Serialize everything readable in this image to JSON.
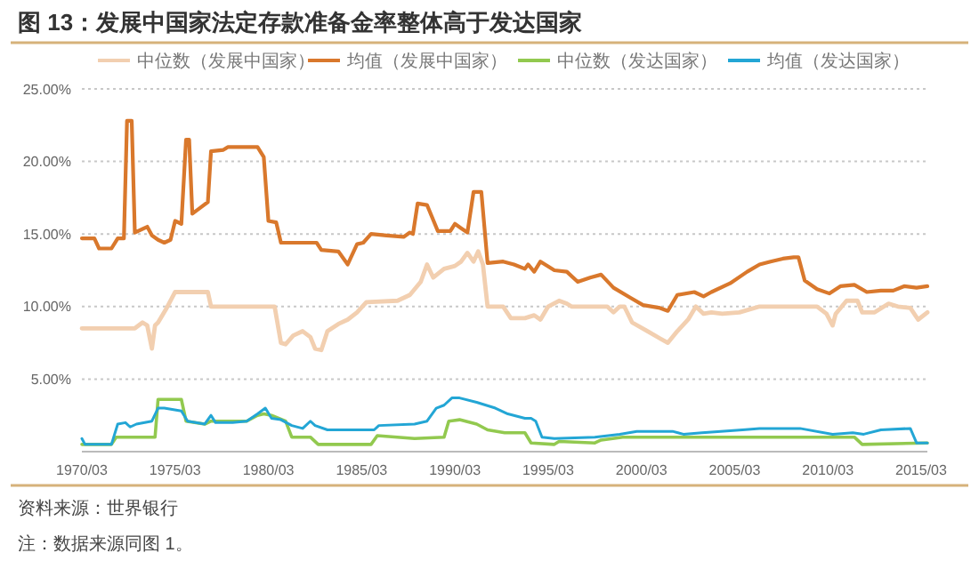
{
  "chart_data": {
    "type": "line",
    "title": "图 13：发展中国家法定存款准备金率整体高于发达国家",
    "annotations": [
      "资料来源：世界银行",
      "注：数据来源同图 1。"
    ],
    "xlim": [
      "1970-03",
      "2015-07"
    ],
    "xticks": [
      {
        "value": "1970-03",
        "label": "1970/03"
      },
      {
        "value": "1975-03",
        "label": "1975/03"
      },
      {
        "value": "1980-03",
        "label": "1980/03"
      },
      {
        "value": "1985-03",
        "label": "1985/03"
      },
      {
        "value": "1990-03",
        "label": "1990/03"
      },
      {
        "value": "1995-03",
        "label": "1995/03"
      },
      {
        "value": "2000-03",
        "label": "2000/03"
      },
      {
        "value": "2005-03",
        "label": "2005/03"
      },
      {
        "value": "2010-03",
        "label": "2010/03"
      },
      {
        "value": "2015-03",
        "label": "2015/03"
      }
    ],
    "ylim": [
      0,
      25
    ],
    "yticks": [
      {
        "value": 0,
        "label": null
      },
      {
        "value": 5,
        "label": "5.00%"
      },
      {
        "value": 10,
        "label": "10.00%"
      },
      {
        "value": 15,
        "label": "15.00%"
      },
      {
        "value": 20,
        "label": "20.00%"
      },
      {
        "value": 25,
        "label": "25.00%"
      }
    ],
    "grid": "y",
    "legend": "top",
    "series": [
      {
        "name": "中位数（发展中国家）",
        "color": "#f2cfb0",
        "x": [
          "1970-03",
          "1973-01",
          "1973-06",
          "1973-09",
          "1973-12",
          "1974-02",
          "1974-04",
          "1974-09",
          "1975-03",
          "1976-12",
          "1977-02",
          "1980-07",
          "1980-11",
          "1981-02",
          "1981-07",
          "1982-01",
          "1982-06",
          "1982-09",
          "1983-01",
          "1983-05",
          "1983-12",
          "1984-06",
          "1984-12",
          "1985-06",
          "1987-02",
          "1987-10",
          "1988-05",
          "1988-09",
          "1989-01",
          "1989-08",
          "1990-03",
          "1990-07",
          "1990-11",
          "1991-03",
          "1991-06",
          "1991-09",
          "1991-12",
          "1992-10",
          "1993-03",
          "1993-12",
          "1994-06",
          "1994-10",
          "1995-03",
          "1995-10",
          "1996-03",
          "1996-06",
          "1998-05",
          "1998-09",
          "1999-01",
          "1999-04",
          "1999-09",
          "2000-07",
          "2001-03",
          "2001-08",
          "2002-02",
          "2002-09",
          "2003-02",
          "2003-07",
          "2003-12",
          "2004-07",
          "2005-06",
          "2006-07",
          "2009-08",
          "2010-02",
          "2010-06",
          "2010-08",
          "2011-03",
          "2011-10",
          "2012-01",
          "2012-09",
          "2013-06",
          "2013-12",
          "2014-08",
          "2015-01",
          "2015-07"
        ],
        "values": [
          8.5,
          8.5,
          8.9,
          8.7,
          7.1,
          8.7,
          8.9,
          9.8,
          11.0,
          11.0,
          10.0,
          10.0,
          7.5,
          7.4,
          8.0,
          8.3,
          7.9,
          7.1,
          7.0,
          8.3,
          8.8,
          9.1,
          9.6,
          10.3,
          10.4,
          10.8,
          11.7,
          12.9,
          12.0,
          12.6,
          12.8,
          13.1,
          13.7,
          13.1,
          13.8,
          12.9,
          10.0,
          10.0,
          9.2,
          9.2,
          9.4,
          9.1,
          10.0,
          10.4,
          10.2,
          10.0,
          10.0,
          9.6,
          10.0,
          10.0,
          8.9,
          8.3,
          7.8,
          7.5,
          8.3,
          9.1,
          10.0,
          9.5,
          9.6,
          9.5,
          9.6,
          10.0,
          10.0,
          9.5,
          8.7,
          9.5,
          10.4,
          10.4,
          9.6,
          9.6,
          10.2,
          10.0,
          9.9,
          9.1,
          9.6
        ]
      },
      {
        "name": "均值（发展中国家）",
        "color": "#d9782c",
        "x": [
          "1970-03",
          "1970-11",
          "1971-02",
          "1971-10",
          "1972-02",
          "1972-06",
          "1972-08",
          "1972-11",
          "1973-01",
          "1973-09",
          "1973-12",
          "1974-04",
          "1974-08",
          "1974-12",
          "1975-03",
          "1975-07",
          "1975-10",
          "1975-12",
          "1976-02",
          "1976-07",
          "1976-12",
          "1977-02",
          "1977-10",
          "1978-01",
          "1979-08",
          "1979-12",
          "1980-03",
          "1980-08",
          "1980-11",
          "1982-10",
          "1983-01",
          "1983-12",
          "1984-06",
          "1984-12",
          "1985-04",
          "1985-09",
          "1986-07",
          "1987-06",
          "1987-10",
          "1987-12",
          "1988-03",
          "1988-09",
          "1989-04",
          "1989-12",
          "1990-03",
          "1990-07",
          "1990-11",
          "1991-03",
          "1991-08",
          "1991-12",
          "1992-10",
          "1993-05",
          "1993-12",
          "1994-02",
          "1994-06",
          "1994-10",
          "1995-07",
          "1996-03",
          "1996-10",
          "1997-06",
          "1998-01",
          "1998-09",
          "1999-08",
          "2000-04",
          "2001-03",
          "2001-08",
          "2002-02",
          "2003-01",
          "2003-07",
          "2003-12",
          "2004-12",
          "2005-11",
          "2006-07",
          "2007-02",
          "2007-10",
          "2008-05",
          "2008-08",
          "2008-12",
          "2009-08",
          "2010-04",
          "2010-11",
          "2011-08",
          "2012-04",
          "2013-01",
          "2013-09",
          "2014-04",
          "2014-12",
          "2015-07"
        ],
        "values": [
          14.7,
          14.7,
          14.0,
          14.0,
          14.7,
          14.7,
          22.8,
          22.8,
          15.1,
          15.5,
          14.9,
          14.6,
          14.4,
          14.6,
          15.9,
          15.7,
          21.5,
          21.5,
          16.4,
          16.8,
          17.2,
          20.7,
          20.8,
          21.0,
          21.0,
          20.3,
          15.9,
          15.8,
          14.4,
          14.4,
          13.9,
          13.8,
          12.9,
          14.3,
          14.4,
          15.0,
          14.9,
          14.8,
          15.1,
          15.0,
          17.1,
          17.0,
          15.2,
          15.2,
          15.7,
          15.4,
          15.1,
          17.9,
          17.9,
          13.0,
          13.1,
          12.9,
          12.6,
          12.9,
          12.4,
          13.1,
          12.5,
          12.4,
          11.7,
          12.0,
          12.2,
          11.3,
          10.6,
          10.1,
          9.9,
          9.7,
          10.8,
          11.0,
          10.7,
          11.0,
          11.6,
          12.4,
          12.9,
          13.1,
          13.3,
          13.4,
          13.4,
          11.8,
          11.2,
          10.9,
          11.4,
          11.5,
          11.0,
          11.1,
          11.1,
          11.4,
          11.3,
          11.4
        ]
      },
      {
        "name": "中位数（发达国家）",
        "color": "#92c94f",
        "x": [
          "1970-03",
          "1971-10",
          "1972-01",
          "1974-02",
          "1974-04",
          "1975-07",
          "1975-10",
          "1976-10",
          "1977-02",
          "1979-01",
          "1979-08",
          "1979-12",
          "1980-05",
          "1981-02",
          "1981-06",
          "1982-06",
          "1982-11",
          "1985-09",
          "1986-01",
          "1988-01",
          "1989-08",
          "1989-11",
          "1990-06",
          "1991-05",
          "1991-12",
          "1992-11",
          "1993-12",
          "1994-04",
          "1995-07",
          "1995-10",
          "1997-09",
          "1998-01",
          "1999-03",
          "2011-08",
          "2012-01",
          "2015-07"
        ],
        "values": [
          0.5,
          0.5,
          1.0,
          1.0,
          3.6,
          3.6,
          2.1,
          1.9,
          2.1,
          2.1,
          2.5,
          2.6,
          2.5,
          2.1,
          1.0,
          1.0,
          0.5,
          0.5,
          1.1,
          0.9,
          1.0,
          2.1,
          2.2,
          1.9,
          1.5,
          1.3,
          1.3,
          0.6,
          0.5,
          0.7,
          0.6,
          0.8,
          1.0,
          1.0,
          0.5,
          0.6
        ]
      },
      {
        "name": "均值（发达国家）",
        "color": "#23a6d5",
        "x": [
          "1970-03",
          "1970-05",
          "1971-10",
          "1972-02",
          "1972-07",
          "1972-10",
          "1973-02",
          "1973-12",
          "1974-04",
          "1974-08",
          "1975-07",
          "1975-11",
          "1976-10",
          "1977-02",
          "1977-05",
          "1978-04",
          "1979-01",
          "1979-08",
          "1980-01",
          "1980-05",
          "1980-11",
          "1981-06",
          "1982-01",
          "1982-06",
          "1982-09",
          "1983-05",
          "1985-11",
          "1986-02",
          "1988-01",
          "1988-09",
          "1989-03",
          "1989-08",
          "1990-01",
          "1990-06",
          "1991-05",
          "1992-05",
          "1993-01",
          "1993-12",
          "1994-04",
          "1994-07",
          "1994-11",
          "1995-07",
          "1997-09",
          "1999-01",
          "1999-12",
          "2001-11",
          "2002-06",
          "2003-06",
          "2005-08",
          "2006-07",
          "2008-09",
          "2010-06",
          "2011-07",
          "2012-02",
          "2013-01",
          "2014-08",
          "2014-12",
          "2015-07"
        ],
        "values": [
          0.9,
          0.5,
          0.5,
          1.9,
          2.0,
          1.7,
          1.9,
          2.1,
          3.0,
          3.0,
          2.8,
          2.1,
          1.9,
          2.5,
          2.0,
          2.0,
          2.1,
          2.6,
          3.0,
          2.3,
          2.2,
          1.8,
          1.6,
          2.1,
          1.8,
          1.5,
          1.5,
          1.8,
          1.9,
          2.1,
          3.0,
          3.2,
          3.7,
          3.7,
          3.4,
          3.0,
          2.6,
          2.3,
          2.3,
          2.1,
          1.0,
          0.9,
          1.0,
          1.2,
          1.4,
          1.4,
          1.2,
          1.3,
          1.5,
          1.6,
          1.6,
          1.2,
          1.3,
          1.2,
          1.5,
          1.6,
          0.6,
          0.6
        ]
      }
    ]
  }
}
